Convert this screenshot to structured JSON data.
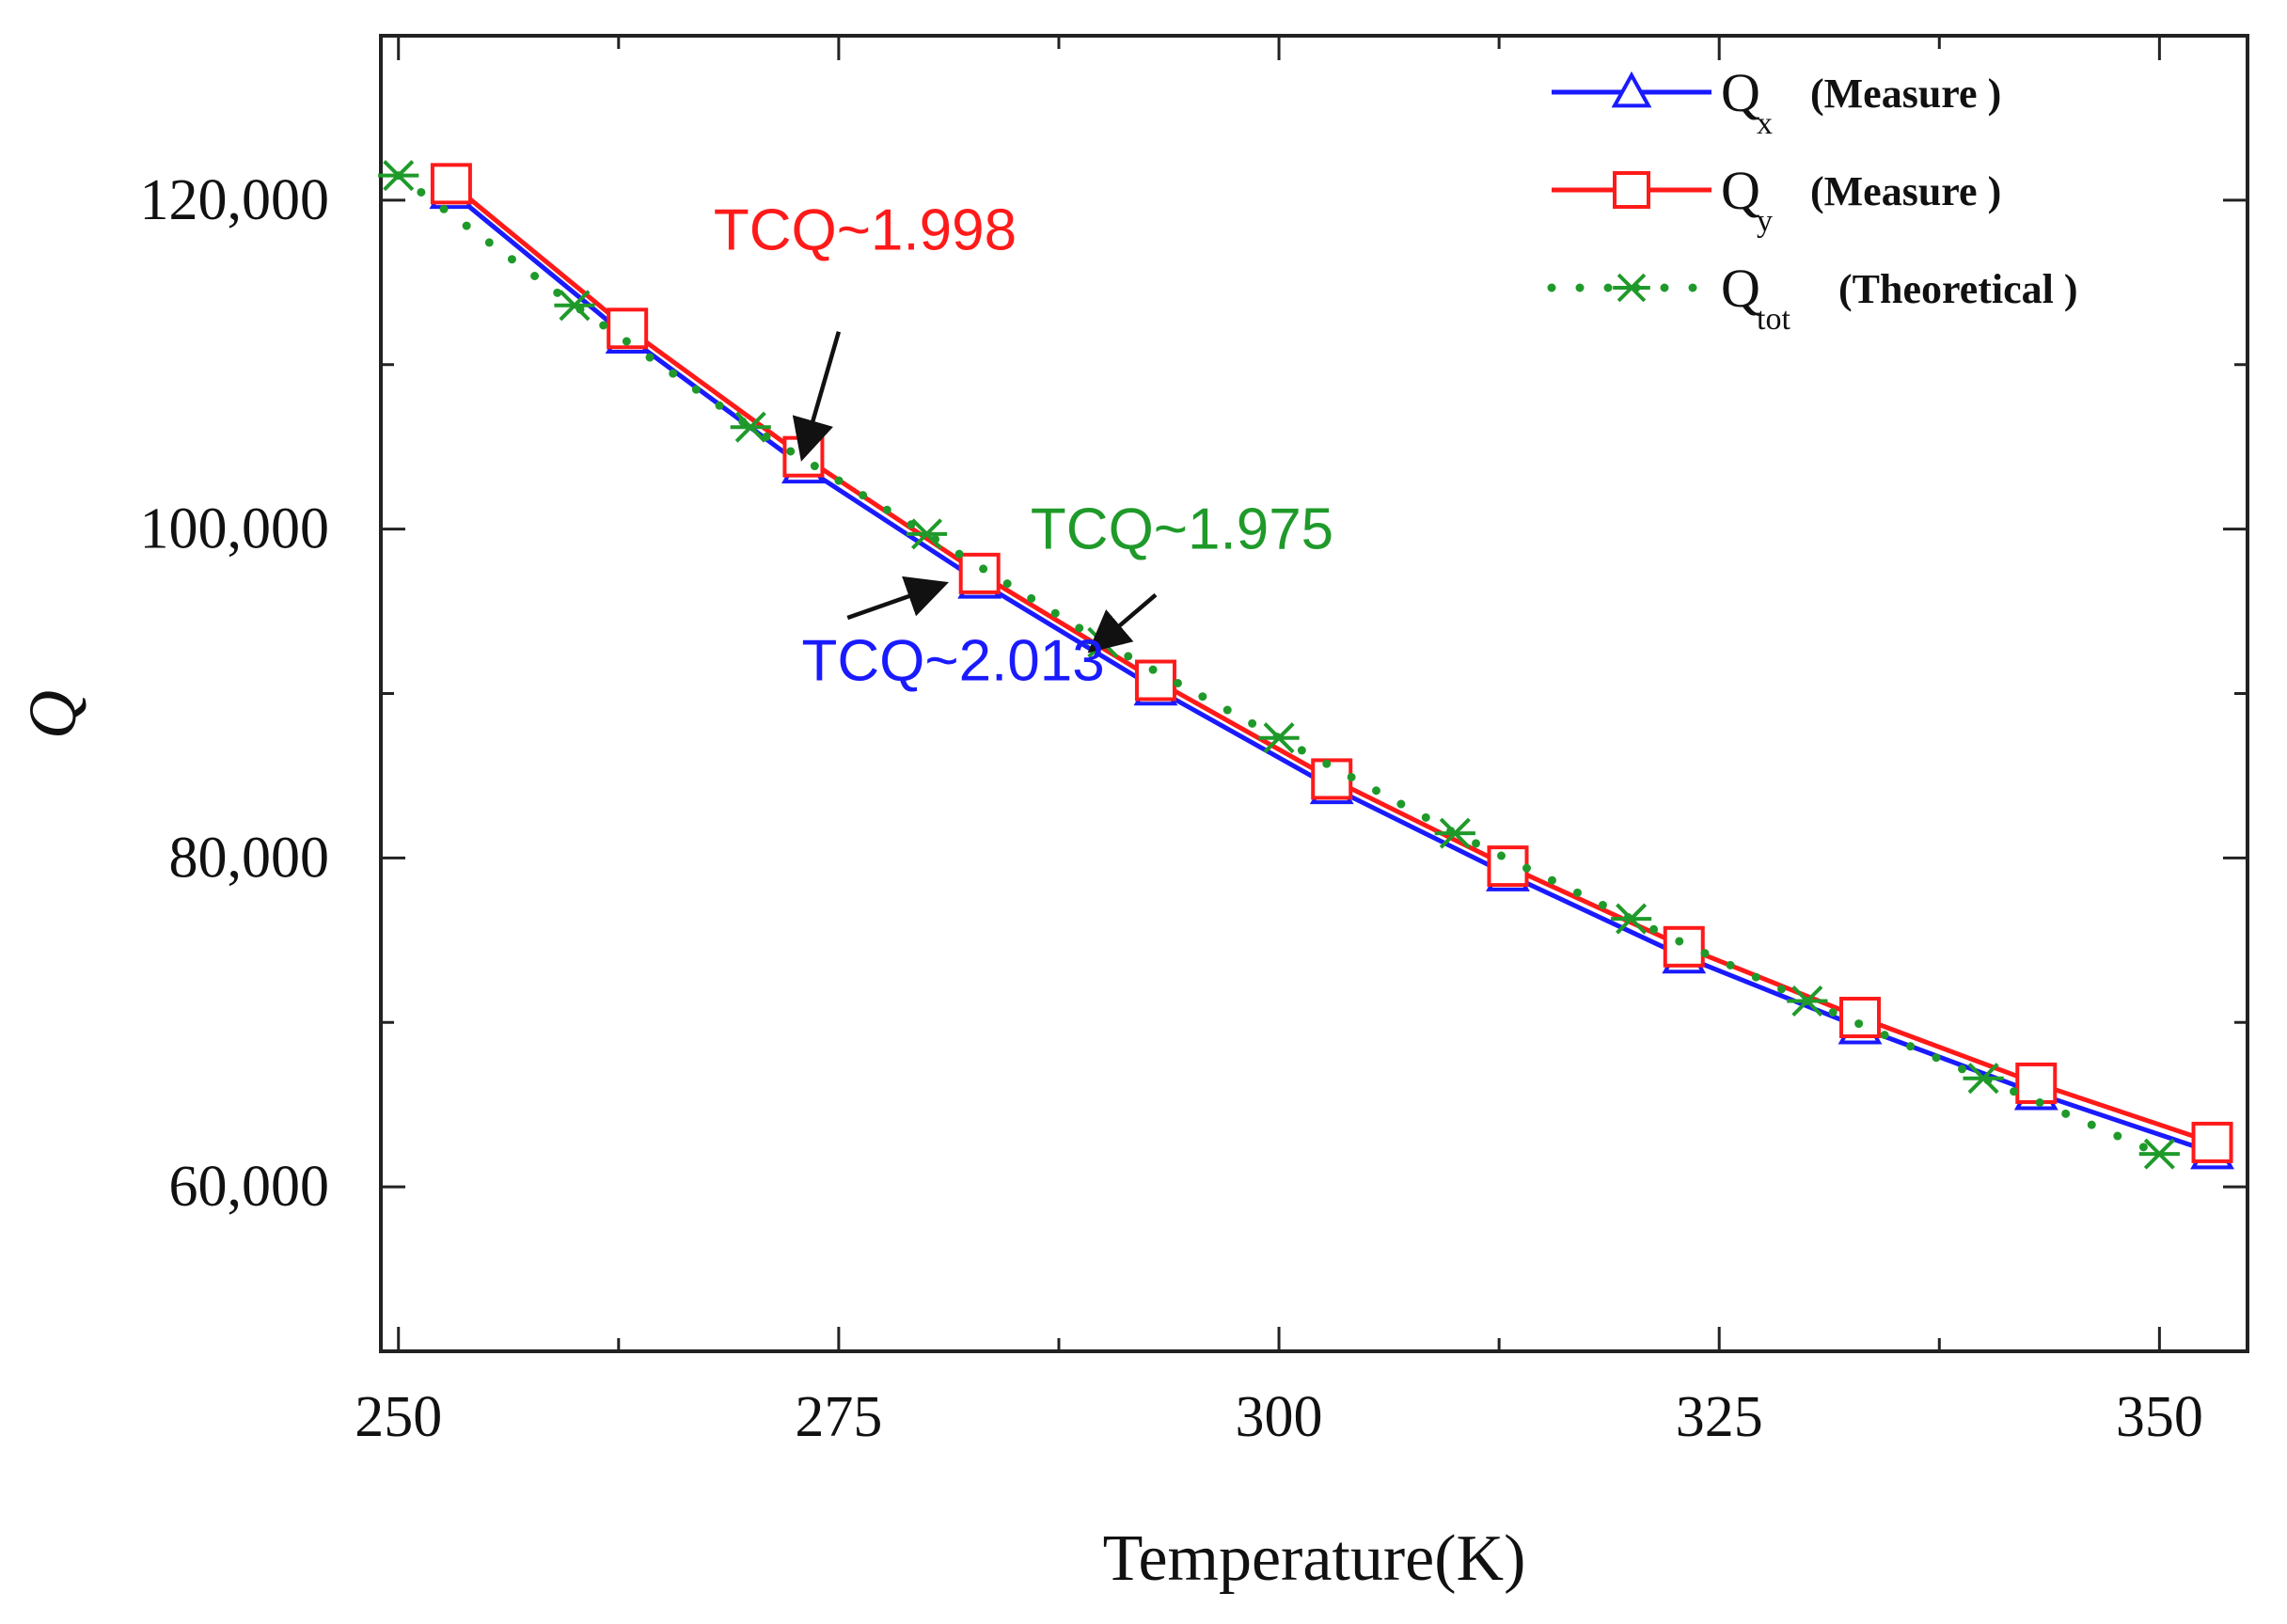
{
  "chart_data": {
    "type": "line",
    "title": "",
    "xlabel": "Temperature(K)",
    "ylabel": "Q",
    "xlim": [
      249,
      355
    ],
    "ylim": [
      50000,
      130000
    ],
    "xticks": [
      250,
      275,
      300,
      325,
      350
    ],
    "xtick_labels": [
      "250",
      "275",
      "300",
      "325",
      "350"
    ],
    "yticks": [
      60000,
      80000,
      100000,
      120000
    ],
    "ytick_labels": [
      "60,000",
      "80,000",
      "100,000",
      "120,000"
    ],
    "grid": false,
    "legend_position": "top-right",
    "series": [
      {
        "name": "Qx (Measure)",
        "label": "Q",
        "sub": "x",
        "paren": "(Measure )",
        "color": "#1a1aff",
        "marker": "triangle",
        "style": "solid",
        "x": [
          253,
          263,
          273,
          283,
          293,
          303,
          313,
          323,
          333,
          343,
          353
        ],
        "y": [
          120500,
          111700,
          103800,
          96800,
          90300,
          84300,
          79000,
          74000,
          69700,
          65700,
          62100
        ]
      },
      {
        "name": "Qy (Measure)",
        "label": "Q",
        "sub": "y",
        "paren": "(Measure )",
        "color": "#ff1a1a",
        "marker": "square",
        "style": "solid",
        "x": [
          253,
          263,
          273,
          283,
          293,
          303,
          313,
          323,
          333,
          343,
          353
        ],
        "y": [
          121000,
          112200,
          104400,
          97300,
          90800,
          84800,
          79500,
          74600,
          70300,
          66300,
          62700
        ]
      },
      {
        "name": "Qtot (Theoretical)",
        "label": "Q",
        "sub": "tot",
        "paren": "(Theoretical )",
        "color": "#1f9a2a",
        "marker": "asterisk",
        "style": "dotted",
        "x": [
          250,
          260,
          270,
          280,
          290,
          300,
          310,
          320,
          330,
          340,
          350
        ],
        "y": [
          121500,
          113600,
          106200,
          99700,
          93100,
          87300,
          81500,
          76300,
          71300,
          66600,
          62000
        ]
      }
    ],
    "annotations": [
      {
        "text": "TCQ~1.998",
        "color": "#ff1a1a",
        "x": 276.5,
        "y": 117000,
        "arrow_from": [
          275,
          112000
        ],
        "arrow_to": [
          273,
          104600
        ]
      },
      {
        "text": "TCQ~1.975",
        "color": "#1f9a2a",
        "x": 294.5,
        "y": 98800,
        "arrow_from": [
          293,
          96000
        ],
        "arrow_to": [
          289.5,
          92800
        ]
      },
      {
        "text": "TCQ~2.013",
        "color": "#1a1aff",
        "x": 281.5,
        "y": 90800,
        "arrow_from": [
          275.5,
          94600
        ],
        "arrow_to": [
          280.8,
          96600
        ]
      }
    ]
  }
}
